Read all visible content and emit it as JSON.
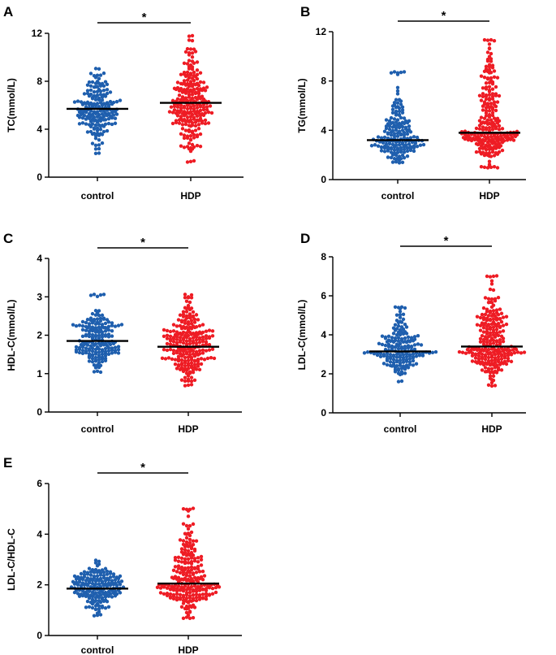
{
  "colors": {
    "control": "#1f5fae",
    "hdp": "#ee1c24",
    "axis": "#000000"
  },
  "chart_data": [
    {
      "panel": "A",
      "type": "scatter",
      "subtype": "beeswarm",
      "ylabel": "TC(mmol/L)",
      "ylim": [
        0,
        12
      ],
      "yticks": [
        "0",
        "4",
        "8",
        "12"
      ],
      "categories": [
        "control",
        "HDP"
      ],
      "series": [
        {
          "name": "control",
          "mean": 5.7,
          "min": 2.0,
          "max": 9.1,
          "n": 180
        },
        {
          "name": "HDP",
          "mean": 6.2,
          "min": 1.3,
          "max": 11.8,
          "n": 240
        }
      ],
      "significance": "*"
    },
    {
      "panel": "B",
      "type": "scatter",
      "subtype": "beeswarm",
      "ylabel": "TG(mmol/L)",
      "ylim": [
        0,
        12
      ],
      "yticks": [
        "0",
        "4",
        "8",
        "12"
      ],
      "categories": [
        "control",
        "HDP"
      ],
      "series": [
        {
          "name": "control",
          "mean": 3.2,
          "min": 1.4,
          "max": 8.7,
          "n": 180
        },
        {
          "name": "HDP",
          "mean": 3.8,
          "min": 1.0,
          "max": 11.3,
          "n": 240
        }
      ],
      "significance": "*"
    },
    {
      "panel": "C",
      "type": "scatter",
      "subtype": "beeswarm",
      "ylabel": "HDL-C(mmol/L)",
      "ylim": [
        0,
        4
      ],
      "yticks": [
        "0",
        "1",
        "2",
        "3",
        "4"
      ],
      "categories": [
        "control",
        "HDP"
      ],
      "series": [
        {
          "name": "control",
          "mean": 1.85,
          "min": 1.05,
          "max": 3.05,
          "n": 180
        },
        {
          "name": "HDP",
          "mean": 1.7,
          "min": 0.7,
          "max": 3.05,
          "n": 240
        }
      ],
      "significance": "*"
    },
    {
      "panel": "D",
      "type": "scatter",
      "subtype": "beeswarm",
      "ylabel": "LDL-C(mmol/L)",
      "ylim": [
        0,
        8
      ],
      "yticks": [
        "0",
        "2",
        "4",
        "6",
        "8"
      ],
      "categories": [
        "control",
        "HDP"
      ],
      "series": [
        {
          "name": "control",
          "mean": 3.15,
          "min": 1.6,
          "max": 5.4,
          "n": 180
        },
        {
          "name": "HDP",
          "mean": 3.4,
          "min": 1.4,
          "max": 7.0,
          "n": 240
        }
      ],
      "significance": "*"
    },
    {
      "panel": "E",
      "type": "scatter",
      "subtype": "beeswarm",
      "ylabel": "LDL-C/HDL-C",
      "ylim": [
        0,
        6
      ],
      "yticks": [
        "0",
        "2",
        "4",
        "6"
      ],
      "categories": [
        "control",
        "HDP"
      ],
      "series": [
        {
          "name": "control",
          "mean": 1.85,
          "min": 0.8,
          "max": 2.95,
          "n": 180
        },
        {
          "name": "HDP",
          "mean": 2.05,
          "min": 0.7,
          "max": 5.0,
          "n": 240
        }
      ],
      "significance": "*"
    }
  ]
}
